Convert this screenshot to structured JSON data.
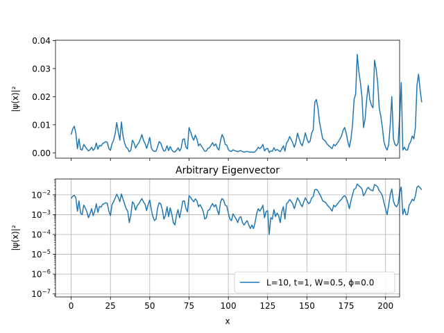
{
  "chart_data": [
    {
      "type": "line",
      "title": "",
      "xlabel": "",
      "ylabel": "|ψ(x)|²",
      "xlim": [
        -9.95,
        208.95
      ],
      "ylim": [
        -0.0019,
        0.0401
      ],
      "yscale": "linear",
      "grid": false,
      "xticks": [
        0,
        25,
        50,
        75,
        100,
        125,
        150,
        175,
        200
      ],
      "xtick_labels_shown": false,
      "yticks": [
        0.0,
        0.01,
        0.02,
        0.03,
        0.04
      ],
      "ytick_labels": [
        "0.00",
        "0.01",
        "0.02",
        "0.03",
        "0.04"
      ],
      "series_ref": "psi2",
      "series": [
        {
          "name": "L=10, t=1, W=0.5, ϕ=0.0",
          "color": "#1f77b4"
        }
      ]
    },
    {
      "type": "line",
      "title": "Arbitrary Eigenvector",
      "xlabel": "x",
      "ylabel": "|ψ(x)|²",
      "xlim": [
        -9.95,
        208.95
      ],
      "ylim_exponent": [
        -7.15,
        -1.2
      ],
      "yscale": "log",
      "grid": true,
      "xticks": [
        0,
        25,
        50,
        75,
        100,
        125,
        150,
        175,
        200
      ],
      "xtick_labels": [
        "0",
        "25",
        "50",
        "75",
        "100",
        "125",
        "150",
        "175",
        "200"
      ],
      "ytick_exponents": [
        -7,
        -6,
        -5,
        -4,
        -3,
        -2
      ],
      "legend": {
        "placement": "lower-right",
        "label": "L=10, t=1, W=0.5, ϕ=0.0"
      },
      "series_ref": "psi2",
      "series": [
        {
          "name": "L=10, t=1, W=0.5, ϕ=0.0",
          "color": "#1f77b4"
        }
      ]
    }
  ],
  "psi2": {
    "x_start": 0,
    "x_step": 1,
    "values": [
      0.0065,
      0.0085,
      0.0095,
      0.007,
      0.0015,
      0.005,
      0.0012,
      0.001,
      0.003,
      0.0022,
      0.0014,
      0.0007,
      0.0011,
      0.002,
      0.0009,
      0.0015,
      0.0035,
      0.0013,
      0.0026,
      0.0024,
      0.0033,
      0.0036,
      0.004,
      0.0037,
      0.0015,
      0.0009,
      0.0032,
      0.0045,
      0.0068,
      0.0108,
      0.0074,
      0.0045,
      0.011,
      0.006,
      0.0035,
      0.002,
      0.0015,
      0.0004,
      0.001,
      0.0045,
      0.0035,
      0.0017,
      0.0028,
      0.0035,
      0.0048,
      0.0065,
      0.0044,
      0.0034,
      0.0016,
      0.0033,
      0.0055,
      0.0018,
      0.0008,
      0.0005,
      0.0006,
      0.0022,
      0.004,
      0.0035,
      0.0018,
      0.0006,
      0.0009,
      0.0025,
      0.0008,
      0.0022,
      0.0011,
      0.0004,
      0.0003,
      0.0009,
      0.0018,
      0.0007,
      0.0017,
      0.0048,
      0.005,
      0.0021,
      0.0014,
      0.009,
      0.0075,
      0.0056,
      0.0045,
      0.0063,
      0.005,
      0.0025,
      0.0032,
      0.0023,
      0.0015,
      0.0006,
      0.0007,
      0.0016,
      0.0018,
      0.0027,
      0.0036,
      0.0025,
      0.0032,
      0.0017,
      0.001,
      0.0042,
      0.0065,
      0.0054,
      0.003,
      0.0028,
      0.0012,
      0.0006,
      0.0005,
      0.0011,
      0.0008,
      0.0006,
      0.0004,
      0.0007,
      0.0008,
      0.0004,
      0.0003,
      0.0004,
      0.0005,
      0.0003,
      0.0002,
      0.0003,
      0.0002,
      0.0004,
      0.0011,
      0.002,
      0.0015,
      0.002,
      0.003,
      0.0007,
      0.0014,
      0.0016,
      0.0001,
      0.0007,
      0.0006,
      0.0018,
      0.0008,
      0.0012,
      0.0009,
      0.0004,
      0.0014,
      0.0025,
      0.0006,
      0.0035,
      0.0043,
      0.0058,
      0.0047,
      0.0035,
      0.002,
      0.0038,
      0.007,
      0.0052,
      0.0034,
      0.0025,
      0.0045,
      0.0071,
      0.005,
      0.0036,
      0.0041,
      0.007,
      0.0082,
      0.018,
      0.019,
      0.016,
      0.011,
      0.008,
      0.005,
      0.0045,
      0.004,
      0.003,
      0.0025,
      0.002,
      0.0015,
      0.003,
      0.0025,
      0.0032,
      0.004,
      0.005,
      0.006,
      0.008,
      0.009,
      0.007,
      0.004,
      0.002,
      0.005,
      0.01,
      0.019,
      0.021,
      0.035,
      0.029,
      0.025,
      0.02,
      0.009,
      0.012,
      0.019,
      0.024,
      0.019,
      0.017,
      0.016,
      0.033,
      0.03,
      0.025,
      0.016,
      0.013,
      0.009,
      0.004,
      0.002,
      0.001,
      0.003,
      0.01,
      0.02,
      0.005,
      0.003,
      0.0025,
      0.0035,
      0.013,
      0.025,
      0.001,
      0.002,
      0.001,
      0.001,
      0.003,
      0.004,
      0.006,
      0.005,
      0.009,
      0.024,
      0.028,
      0.0225,
      0.018
    ]
  }
}
